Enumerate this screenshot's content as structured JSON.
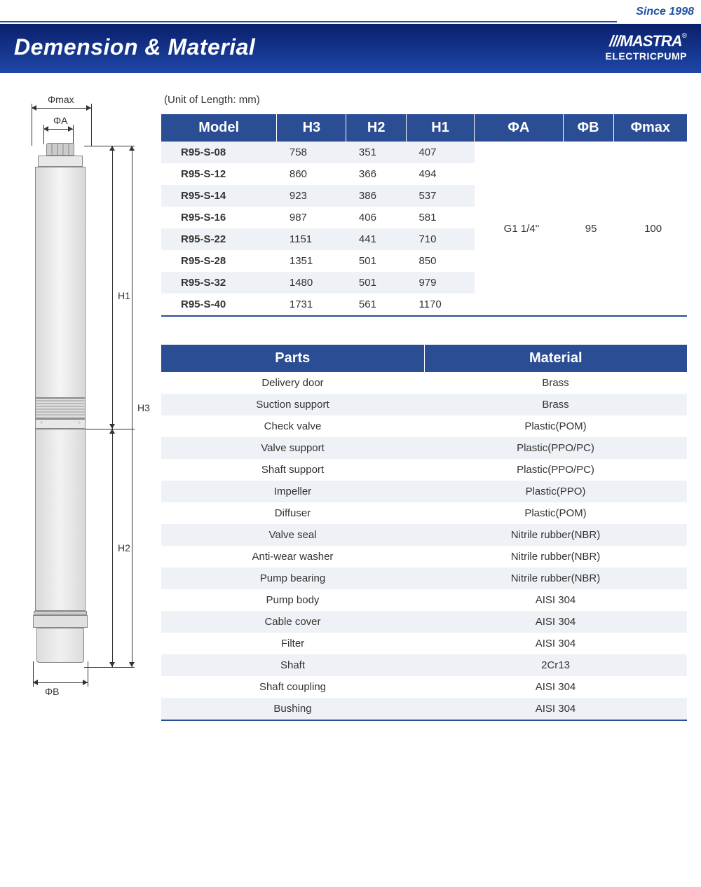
{
  "since": "Since 1998",
  "title": "Demension & Material",
  "brand_top": "///MASTRA",
  "brand_bot": "ELECTRICPUMP",
  "reg": "®",
  "unit": "(Unit of Length: mm)",
  "dim": {
    "headers": [
      "Model",
      "H3",
      "H2",
      "H1",
      "ΦA",
      "ΦB",
      "Φmax"
    ],
    "rows": [
      {
        "m": "R95-S-08",
        "h3": "758",
        "h2": "351",
        "h1": "407"
      },
      {
        "m": "R95-S-12",
        "h3": "860",
        "h2": "366",
        "h1": "494"
      },
      {
        "m": "R95-S-14",
        "h3": "923",
        "h2": "386",
        "h1": "537"
      },
      {
        "m": "R95-S-16",
        "h3": "987",
        "h2": "406",
        "h1": "581"
      },
      {
        "m": "R95-S-22",
        "h3": "1151",
        "h2": "441",
        "h1": "710"
      },
      {
        "m": "R95-S-28",
        "h3": "1351",
        "h2": "501",
        "h1": "850"
      },
      {
        "m": "R95-S-32",
        "h3": "1480",
        "h2": "501",
        "h1": "979"
      },
      {
        "m": "R95-S-40",
        "h3": "1731",
        "h2": "561",
        "h1": "1170"
      }
    ],
    "pa": "G1 1/4\"",
    "pb": "95",
    "pmax": "100"
  },
  "mat": {
    "headers": [
      "Parts",
      "Material"
    ],
    "rows": [
      [
        "Delivery door",
        "Brass"
      ],
      [
        "Suction support",
        "Brass"
      ],
      [
        "Check valve",
        "Plastic(POM)"
      ],
      [
        "Valve support",
        "Plastic(PPO/PC)"
      ],
      [
        "Shaft support",
        "Plastic(PPO/PC)"
      ],
      [
        "Impeller",
        "Plastic(PPO)"
      ],
      [
        "Diffuser",
        "Plastic(POM)"
      ],
      [
        "Valve seal",
        "Nitrile rubber(NBR)"
      ],
      [
        "Anti-wear washer",
        "Nitrile rubber(NBR)"
      ],
      [
        "Pump bearing",
        "Nitrile rubber(NBR)"
      ],
      [
        "Pump body",
        "AISI 304"
      ],
      [
        "Cable cover",
        "AISI 304"
      ],
      [
        "Filter",
        "AISI 304"
      ],
      [
        "Shaft",
        "2Cr13"
      ],
      [
        "Shaft coupling",
        "AISI 304"
      ],
      [
        "Bushing",
        "AISI 304"
      ]
    ]
  },
  "labels": {
    "pmax": "Φmax",
    "pa": "ΦA",
    "pb": "ΦB",
    "h1": "H1",
    "h2": "H2",
    "h3": "H3"
  },
  "colors": {
    "header_bg": "#2a4d94",
    "row_alt": "#eef1f6",
    "banner_top": "#0a1f6b",
    "banner_bot": "#1e47a8",
    "accent": "#1e4fa3"
  }
}
